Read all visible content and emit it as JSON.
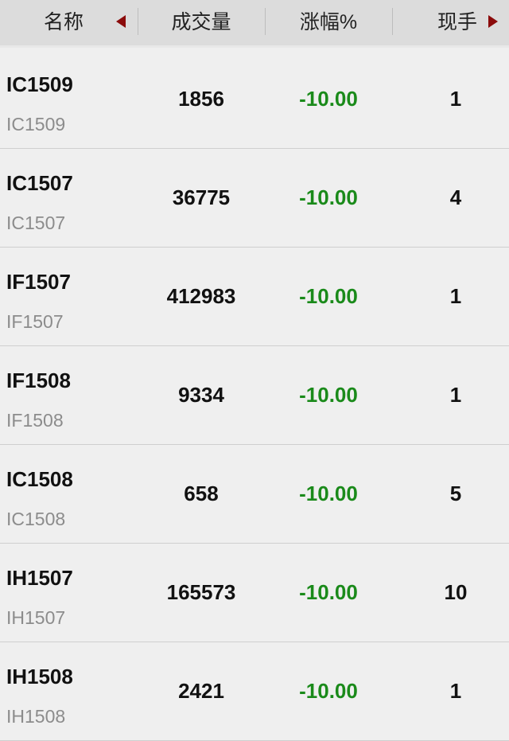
{
  "header": {
    "columns": [
      "名称",
      "成交量",
      "涨幅%",
      "现手"
    ],
    "sort_left_icon": "triangle-left",
    "sort_right_icon": "triangle-right",
    "arrow_color": "#8b0b0b"
  },
  "colors": {
    "down": "#1a8a1a"
  },
  "rows": [
    {
      "name": "IC1509",
      "code": "IC1509",
      "volume": "1856",
      "change": "-10.00",
      "hand": "1"
    },
    {
      "name": "IC1507",
      "code": "IC1507",
      "volume": "36775",
      "change": "-10.00",
      "hand": "4"
    },
    {
      "name": "IF1507",
      "code": "IF1507",
      "volume": "412983",
      "change": "-10.00",
      "hand": "1"
    },
    {
      "name": "IF1508",
      "code": "IF1508",
      "volume": "9334",
      "change": "-10.00",
      "hand": "1"
    },
    {
      "name": "IC1508",
      "code": "IC1508",
      "volume": "658",
      "change": "-10.00",
      "hand": "5"
    },
    {
      "name": "IH1507",
      "code": "IH1507",
      "volume": "165573",
      "change": "-10.00",
      "hand": "10"
    },
    {
      "name": "IH1508",
      "code": "IH1508",
      "volume": "2421",
      "change": "-10.00",
      "hand": "1"
    }
  ]
}
